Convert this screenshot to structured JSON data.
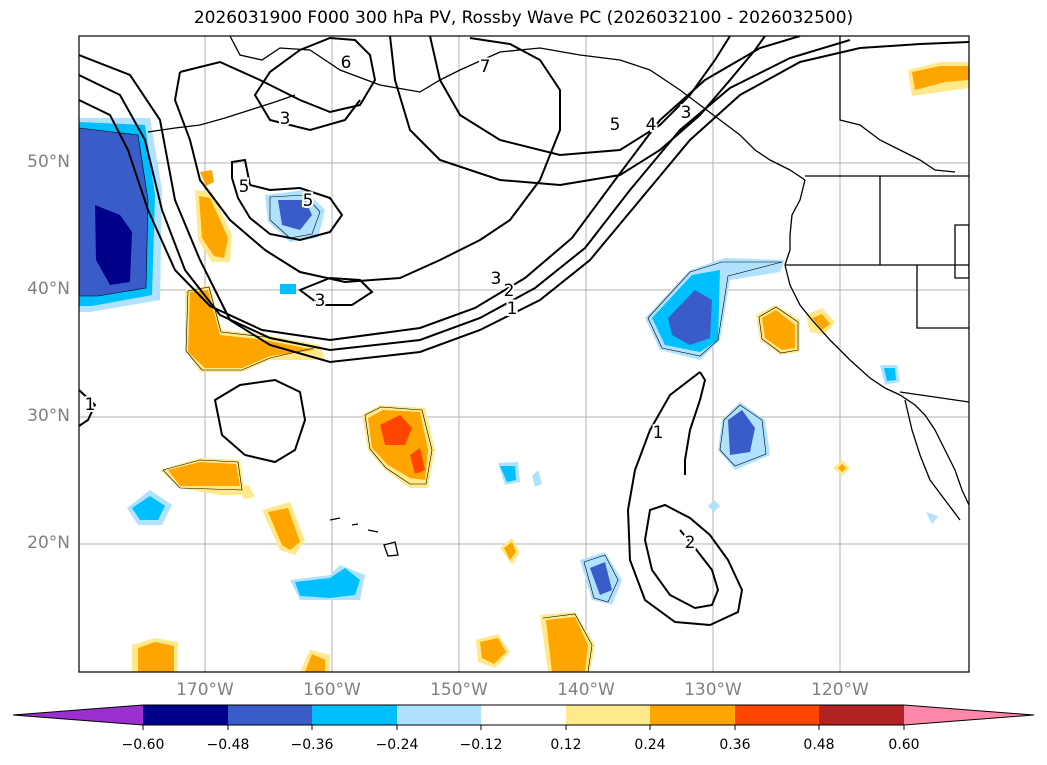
{
  "title": "2026031900 F000 300 hPa PV, Rossby Wave PC (2026032100 - 2026032500)",
  "lat_labels": [
    "50°N",
    "40°N",
    "30°N",
    "20°N"
  ],
  "lon_labels": [
    "170°W",
    "160°W",
    "150°W",
    "140°W",
    "130°W",
    "120°W"
  ],
  "contour_labels": [
    "7",
    "6",
    "5",
    "4",
    "3",
    "3",
    "5",
    "3",
    "5",
    "3",
    "2",
    "1",
    "1",
    "1",
    "2"
  ],
  "colorbar": {
    "ticks": [
      "−0.60",
      "−0.48",
      "−0.36",
      "−0.24",
      "−0.12",
      "0.12",
      "0.24",
      "0.36",
      "0.48",
      "0.60"
    ],
    "colors": [
      "#9b30d0",
      "#00008b",
      "#3a5cc8",
      "#00bfff",
      "#b0e2ff",
      "#ffffff",
      "#ffe98a",
      "#ffa500",
      "#ff4500",
      "#b22222",
      "#ff88aa"
    ]
  },
  "fill_colors": {
    "neg1": "#b0e2ff",
    "neg2": "#00bfff",
    "neg3": "#3a5cc8",
    "neg4": "#00008b",
    "pos1": "#ffe98a",
    "pos2": "#ffa500",
    "pos3": "#ff4500"
  }
}
